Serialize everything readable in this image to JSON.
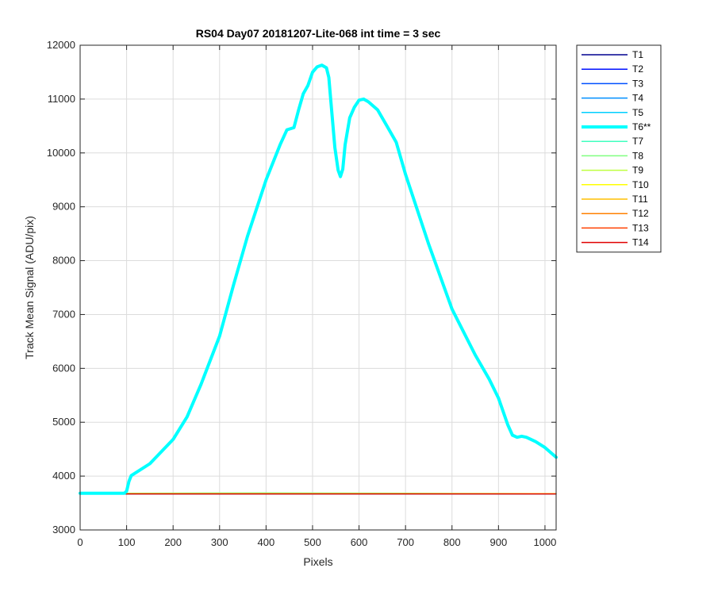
{
  "chart_data": {
    "type": "line",
    "title": "RS04 Day07 20181207-Lite-068 int time = 3 sec",
    "xlabel": "Pixels",
    "ylabel": "Track Mean Signal (ADU/pix)",
    "xlim": [
      0,
      1024
    ],
    "ylim": [
      3000,
      12000
    ],
    "xticks": [
      0,
      100,
      200,
      300,
      400,
      500,
      600,
      700,
      800,
      900,
      1000
    ],
    "yticks": [
      3000,
      4000,
      5000,
      6000,
      7000,
      8000,
      9000,
      10000,
      11000,
      12000
    ],
    "grid": true,
    "legend_position": "outside-top-right",
    "series": [
      {
        "name": "T1",
        "color": "#00008f",
        "x": [
          0,
          1024
        ],
        "y": [
          3670,
          3670
        ]
      },
      {
        "name": "T2",
        "color": "#0010ff",
        "x": [
          0,
          1024
        ],
        "y": [
          3670,
          3670
        ]
      },
      {
        "name": "T3",
        "color": "#0050ff",
        "x": [
          0,
          1024
        ],
        "y": [
          3670,
          3670
        ]
      },
      {
        "name": "T4",
        "color": "#008fff",
        "x": [
          0,
          1024
        ],
        "y": [
          3670,
          3670
        ]
      },
      {
        "name": "T5",
        "color": "#00cfff",
        "x": [
          0,
          1024
        ],
        "y": [
          3670,
          3670
        ]
      },
      {
        "name": "T6**",
        "color": "#00ffff",
        "highlight": true,
        "x": [
          0,
          95,
          100,
          105,
          110,
          150,
          200,
          230,
          260,
          300,
          330,
          360,
          400,
          430,
          445,
          460,
          470,
          480,
          490,
          500,
          510,
          520,
          530,
          535,
          540,
          548,
          555,
          560,
          565,
          570,
          580,
          590,
          600,
          610,
          620,
          640,
          660,
          680,
          700,
          750,
          800,
          850,
          880,
          900,
          920,
          930,
          940,
          950,
          960,
          980,
          1000,
          1024
        ],
        "y": [
          3680,
          3680,
          3720,
          3900,
          4010,
          4230,
          4680,
          5100,
          5700,
          6600,
          7550,
          8450,
          9500,
          10150,
          10430,
          10470,
          10800,
          11100,
          11250,
          11500,
          11600,
          11630,
          11580,
          11400,
          10900,
          10100,
          9680,
          9560,
          9700,
          10150,
          10650,
          10850,
          10980,
          11000,
          10950,
          10800,
          10500,
          10200,
          9600,
          8300,
          7100,
          6250,
          5800,
          5450,
          4950,
          4760,
          4720,
          4740,
          4720,
          4640,
          4530,
          4350
        ]
      },
      {
        "name": "T7",
        "color": "#40ffbf",
        "x": [
          0,
          1024
        ],
        "y": [
          3675,
          3675
        ]
      },
      {
        "name": "T8",
        "color": "#80ff80",
        "x": [
          0,
          200,
          400,
          600,
          800,
          1024
        ],
        "y": [
          3680,
          3685,
          3690,
          3685,
          3680,
          3675
        ]
      },
      {
        "name": "T9",
        "color": "#bfff40",
        "x": [
          0,
          1024
        ],
        "y": [
          3675,
          3675
        ]
      },
      {
        "name": "T10",
        "color": "#ffff00",
        "x": [
          0,
          1024
        ],
        "y": [
          3672,
          3672
        ]
      },
      {
        "name": "T11",
        "color": "#ffbf00",
        "x": [
          0,
          1024
        ],
        "y": [
          3672,
          3672
        ]
      },
      {
        "name": "T12",
        "color": "#ff8000",
        "x": [
          0,
          1024
        ],
        "y": [
          3670,
          3670
        ]
      },
      {
        "name": "T13",
        "color": "#ff4000",
        "x": [
          0,
          1024
        ],
        "y": [
          3670,
          3670
        ]
      },
      {
        "name": "T14",
        "color": "#e00000",
        "x": [
          0,
          1024
        ],
        "y": [
          3668,
          3668
        ]
      }
    ]
  }
}
